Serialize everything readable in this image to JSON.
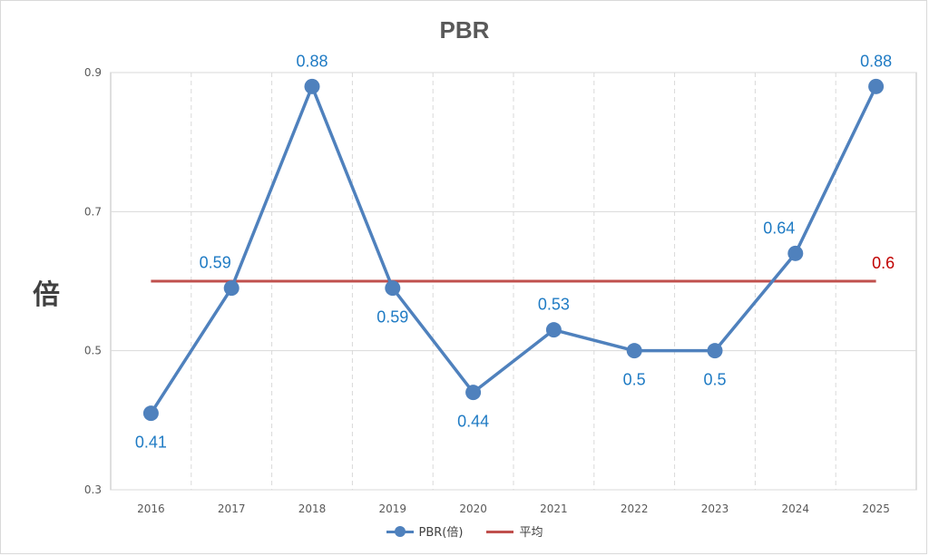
{
  "chart_data": {
    "type": "line",
    "title": "PBR",
    "ylabel": "倍",
    "xlabel": "",
    "ylim": [
      0.3,
      0.9
    ],
    "yticks": [
      "0.3",
      "0.5",
      "0.7",
      "0.9"
    ],
    "categories": [
      "2016",
      "2017",
      "2018",
      "2019",
      "2020",
      "2021",
      "2022",
      "2023",
      "2024",
      "2025"
    ],
    "series": [
      {
        "name": "PBR(倍)",
        "values": [
          0.41,
          0.59,
          0.88,
          0.59,
          0.44,
          0.53,
          0.5,
          0.5,
          0.64,
          0.88
        ],
        "labels": [
          "0.41",
          "0.59",
          "0.88",
          "0.59",
          "0.44",
          "0.53",
          "0.5",
          "0.5",
          "0.64",
          "0.88"
        ],
        "color": "#4f81bd",
        "label_color": "#1f7bc4"
      },
      {
        "name": "平均",
        "values": [
          0.6,
          0.6,
          0.6,
          0.6,
          0.6,
          0.6,
          0.6,
          0.6,
          0.6,
          0.6
        ],
        "end_label": "0.6",
        "color": "#c0504d",
        "label_color": "#c00000"
      }
    ],
    "grid": true,
    "legend_position": "bottom"
  }
}
